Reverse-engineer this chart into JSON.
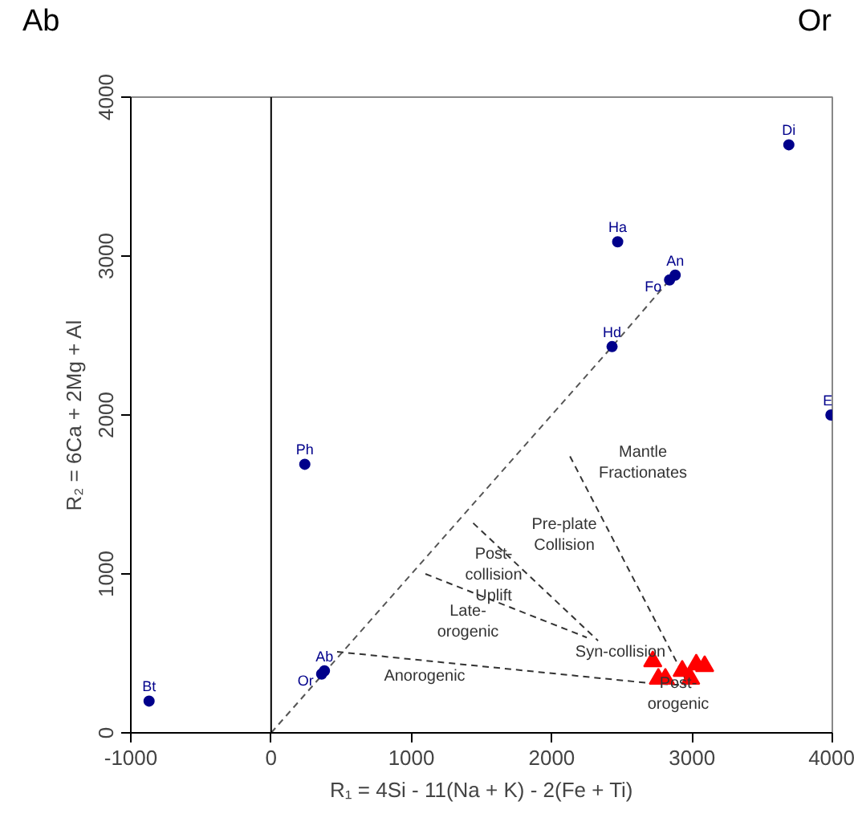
{
  "chart_data": {
    "type": "scatter",
    "xlabel": "R₁ = 4Si - 11(Na + K) - 2(Fe + Ti)",
    "ylabel": "R₂ = 6Ca + 2Mg + Al",
    "xlim": [
      -1000,
      4000
    ],
    "ylim": [
      0,
      4000
    ],
    "xticks": [
      -1000,
      0,
      1000,
      2000,
      3000,
      4000
    ],
    "yticks": [
      0,
      1000,
      2000,
      3000,
      4000
    ],
    "grid": false,
    "series": [
      {
        "type": "line",
        "line_style": "dashed",
        "color": "#555555",
        "x": [
          0,
          2430,
          2860
        ],
        "values": [
          0,
          2430,
          2870
        ]
      },
      {
        "type": "line",
        "line_style": "dashed",
        "color": "#333333",
        "x": [
          470,
          2730,
          2950
        ],
        "values": [
          510,
          310,
          300
        ]
      },
      {
        "type": "line",
        "line_style": "dashed",
        "color": "#333333",
        "x": [
          2130,
          2970
        ],
        "values": [
          1740,
          310
        ]
      },
      {
        "type": "line",
        "line_style": "dashed",
        "color": "#333333",
        "x": [
          1440,
          2330
        ],
        "values": [
          1320,
          580
        ]
      },
      {
        "type": "line",
        "line_style": "dashed",
        "color": "#333333",
        "x": [
          1100,
          2250
        ],
        "values": [
          1000,
          600
        ]
      },
      {
        "name": "Bt",
        "color": "#00008b",
        "x": [
          -870
        ],
        "values": [
          200
        ]
      },
      {
        "name": "Ab",
        "color": "#00008b",
        "x": [
          380
        ],
        "values": [
          390
        ]
      },
      {
        "name": "Or",
        "color": "#00008b",
        "x": [
          360
        ],
        "values": [
          370
        ]
      },
      {
        "name": "Ph",
        "color": "#00008b",
        "x": [
          240
        ],
        "values": [
          1690
        ]
      },
      {
        "name": "Hd",
        "color": "#00008b",
        "x": [
          2430
        ],
        "values": [
          2430
        ]
      },
      {
        "name": "An",
        "color": "#00008b",
        "x": [
          2880
        ],
        "values": [
          2880
        ]
      },
      {
        "name": "Fo",
        "color": "#00008b",
        "x": [
          2840
        ],
        "values": [
          2850
        ]
      },
      {
        "name": "Ha",
        "color": "#00008b",
        "x": [
          2470
        ],
        "values": [
          3090
        ]
      },
      {
        "name": "Di",
        "color": "#00008b",
        "x": [
          3690
        ],
        "values": [
          3700
        ]
      },
      {
        "name": "E",
        "color": "#00008b",
        "x": [
          3990
        ],
        "values": [
          2000
        ]
      },
      {
        "marker": "triangle",
        "color": "#ff0000",
        "x": [
          2720,
          2930,
          3030,
          3090,
          2760,
          2810,
          2990
        ],
        "values": [
          450,
          390,
          430,
          420,
          340,
          340,
          340
        ]
      }
    ],
    "ref_lines": [
      {
        "axis": "x",
        "value": 0,
        "color": "#000000",
        "line_style": "solid"
      }
    ],
    "annotations": [
      "Ab",
      "Or",
      "Mantle\nFractionates",
      "Pre-plate\nCollision",
      "Post-\ncollision\nUplift",
      "Late-\norogenic",
      "Anorogenic",
      "Syn-collision",
      "Post-\norogenic"
    ]
  }
}
